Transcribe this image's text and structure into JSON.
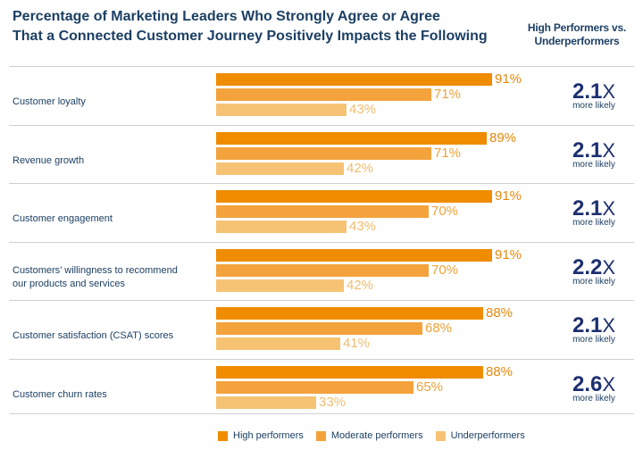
{
  "header": {
    "title_line1": "Percentage of Marketing Leaders Who Strongly Agree or Agree",
    "title_line2": "That a Connected Customer Journey Positively Impacts the Following",
    "side_title_line1": "High Performers vs.",
    "side_title_line2": "Underperformers",
    "multiplier_suffix": "more likely"
  },
  "colors": {
    "high": "#ef8c00",
    "moderate": "#f4a23c",
    "under": "#f6c374",
    "navy": "#1c2f6e"
  },
  "chart_data": {
    "type": "bar",
    "orientation": "horizontal",
    "title": "Percentage of Marketing Leaders Who Strongly Agree or Agree That a Connected Customer Journey Positively Impacts the Following",
    "xlim": [
      0,
      100
    ],
    "value_suffix": "%",
    "categories": [
      {
        "label_lines": [
          "Customer loyalty"
        ],
        "multiplier": "2.1"
      },
      {
        "label_lines": [
          "Revenue growth"
        ],
        "multiplier": "2.1"
      },
      {
        "label_lines": [
          "Customer engagement"
        ],
        "multiplier": "2.1"
      },
      {
        "label_lines": [
          "Customers’ willingness to recommend",
          "our products and services"
        ],
        "multiplier": "2.2"
      },
      {
        "label_lines": [
          "Customer satisfaction (CSAT) scores"
        ],
        "multiplier": "2.1"
      },
      {
        "label_lines": [
          "Customer churn rates"
        ],
        "multiplier": "2.6"
      }
    ],
    "series": [
      {
        "name": "High performers",
        "key": "high",
        "values": [
          91,
          89,
          91,
          91,
          88,
          88
        ]
      },
      {
        "name": "Moderate performers",
        "key": "mod",
        "values": [
          71,
          71,
          70,
          70,
          68,
          65
        ]
      },
      {
        "name": "Underperformers",
        "key": "under",
        "values": [
          43,
          42,
          43,
          42,
          41,
          33
        ]
      }
    ],
    "multiplier_unit": "X",
    "legend": [
      "High performers",
      "Moderate performers",
      "Underperformers"
    ],
    "legend_position": "bottom"
  }
}
